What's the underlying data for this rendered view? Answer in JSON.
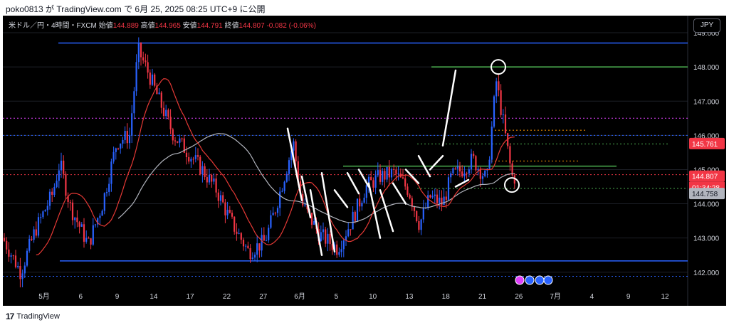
{
  "header": {
    "publish_text": "poko0813 が TradingView.com で 6月 25, 2025 08:25 UTC+9 に公開"
  },
  "legend": {
    "symbol": "米ドル／円・4時間・FXCM",
    "open_label": "始値",
    "open": "144.889",
    "high_label": "高値",
    "high": "144.965",
    "low_label": "安値",
    "low": "144.791",
    "close_label": "終値",
    "close": "144.807",
    "change": "-0.082 (-0.06%)"
  },
  "currency_button": "JPY",
  "footer": {
    "brand": "TradingView",
    "logo": "17"
  },
  "price_badges": {
    "red": "145.761",
    "current": "144.807",
    "countdown": "01:34:28",
    "gray": "144.758"
  },
  "colors": {
    "bull": "#2962ff",
    "bear": "#f23645",
    "ma_fast": "#e53935",
    "ma_slow": "#b2b5be",
    "support": "#2962ff",
    "green": "#4caf50",
    "orange": "#ff9800",
    "magenta": "#e040fb",
    "background": "#000000"
  },
  "chart_data": {
    "type": "candlestick",
    "title": "",
    "yaxis": {
      "min": 141.6,
      "max": 149.5,
      "ticks": [
        "149.000",
        "148.000",
        "147.000",
        "146.000",
        "145.000",
        "144.000",
        "143.000",
        "142.000"
      ]
    },
    "xaxis": {
      "ticks": [
        "5月",
        "6",
        "9",
        "14",
        "17",
        "22",
        "27",
        "6月",
        "5",
        "10",
        "13",
        "18",
        "21",
        "26",
        "7月",
        "4",
        "9",
        "12"
      ]
    },
    "horizontal_levels": [
      {
        "kind": "blue-solid",
        "price": 148.7
      },
      {
        "kind": "blue-solid",
        "price": 142.33
      },
      {
        "kind": "green-solid",
        "price": 148.0
      },
      {
        "kind": "green-solid",
        "price": 145.1
      },
      {
        "kind": "magenta-dotted",
        "price": 146.5
      },
      {
        "kind": "blue-dotted",
        "price": 146.0
      },
      {
        "kind": "blue-dotted",
        "price": 141.88
      },
      {
        "kind": "green-dotted",
        "price": 145.75
      },
      {
        "kind": "green-dotted",
        "price": 144.45
      },
      {
        "kind": "orange-dotted",
        "price": 146.15
      },
      {
        "kind": "orange-dotted",
        "price": 145.25
      },
      {
        "kind": "red-dotted",
        "price": 144.85
      }
    ],
    "zigzag": [
      [
        146.2,
        144.1
      ],
      [
        144.8,
        143.6
      ],
      [
        144.4,
        142.5
      ],
      [
        144.9,
        142.6
      ],
      [
        144.4,
        143.9
      ],
      [
        144.9,
        144.3
      ],
      [
        145.0,
        144.5
      ],
      [
        144.6,
        143.0
      ],
      [
        144.4,
        143.2
      ],
      [
        144.6,
        144.0
      ],
      [
        145.0,
        144.6
      ],
      [
        145.4,
        144.8
      ],
      [
        145.0,
        145.4
      ],
      [
        145.7,
        147.9
      ],
      [
        144.5,
        144.7
      ]
    ],
    "annotations": [
      {
        "kind": "circle",
        "price": 148.0,
        "label": ""
      },
      {
        "kind": "circle",
        "price": 144.55,
        "label": ""
      }
    ]
  }
}
